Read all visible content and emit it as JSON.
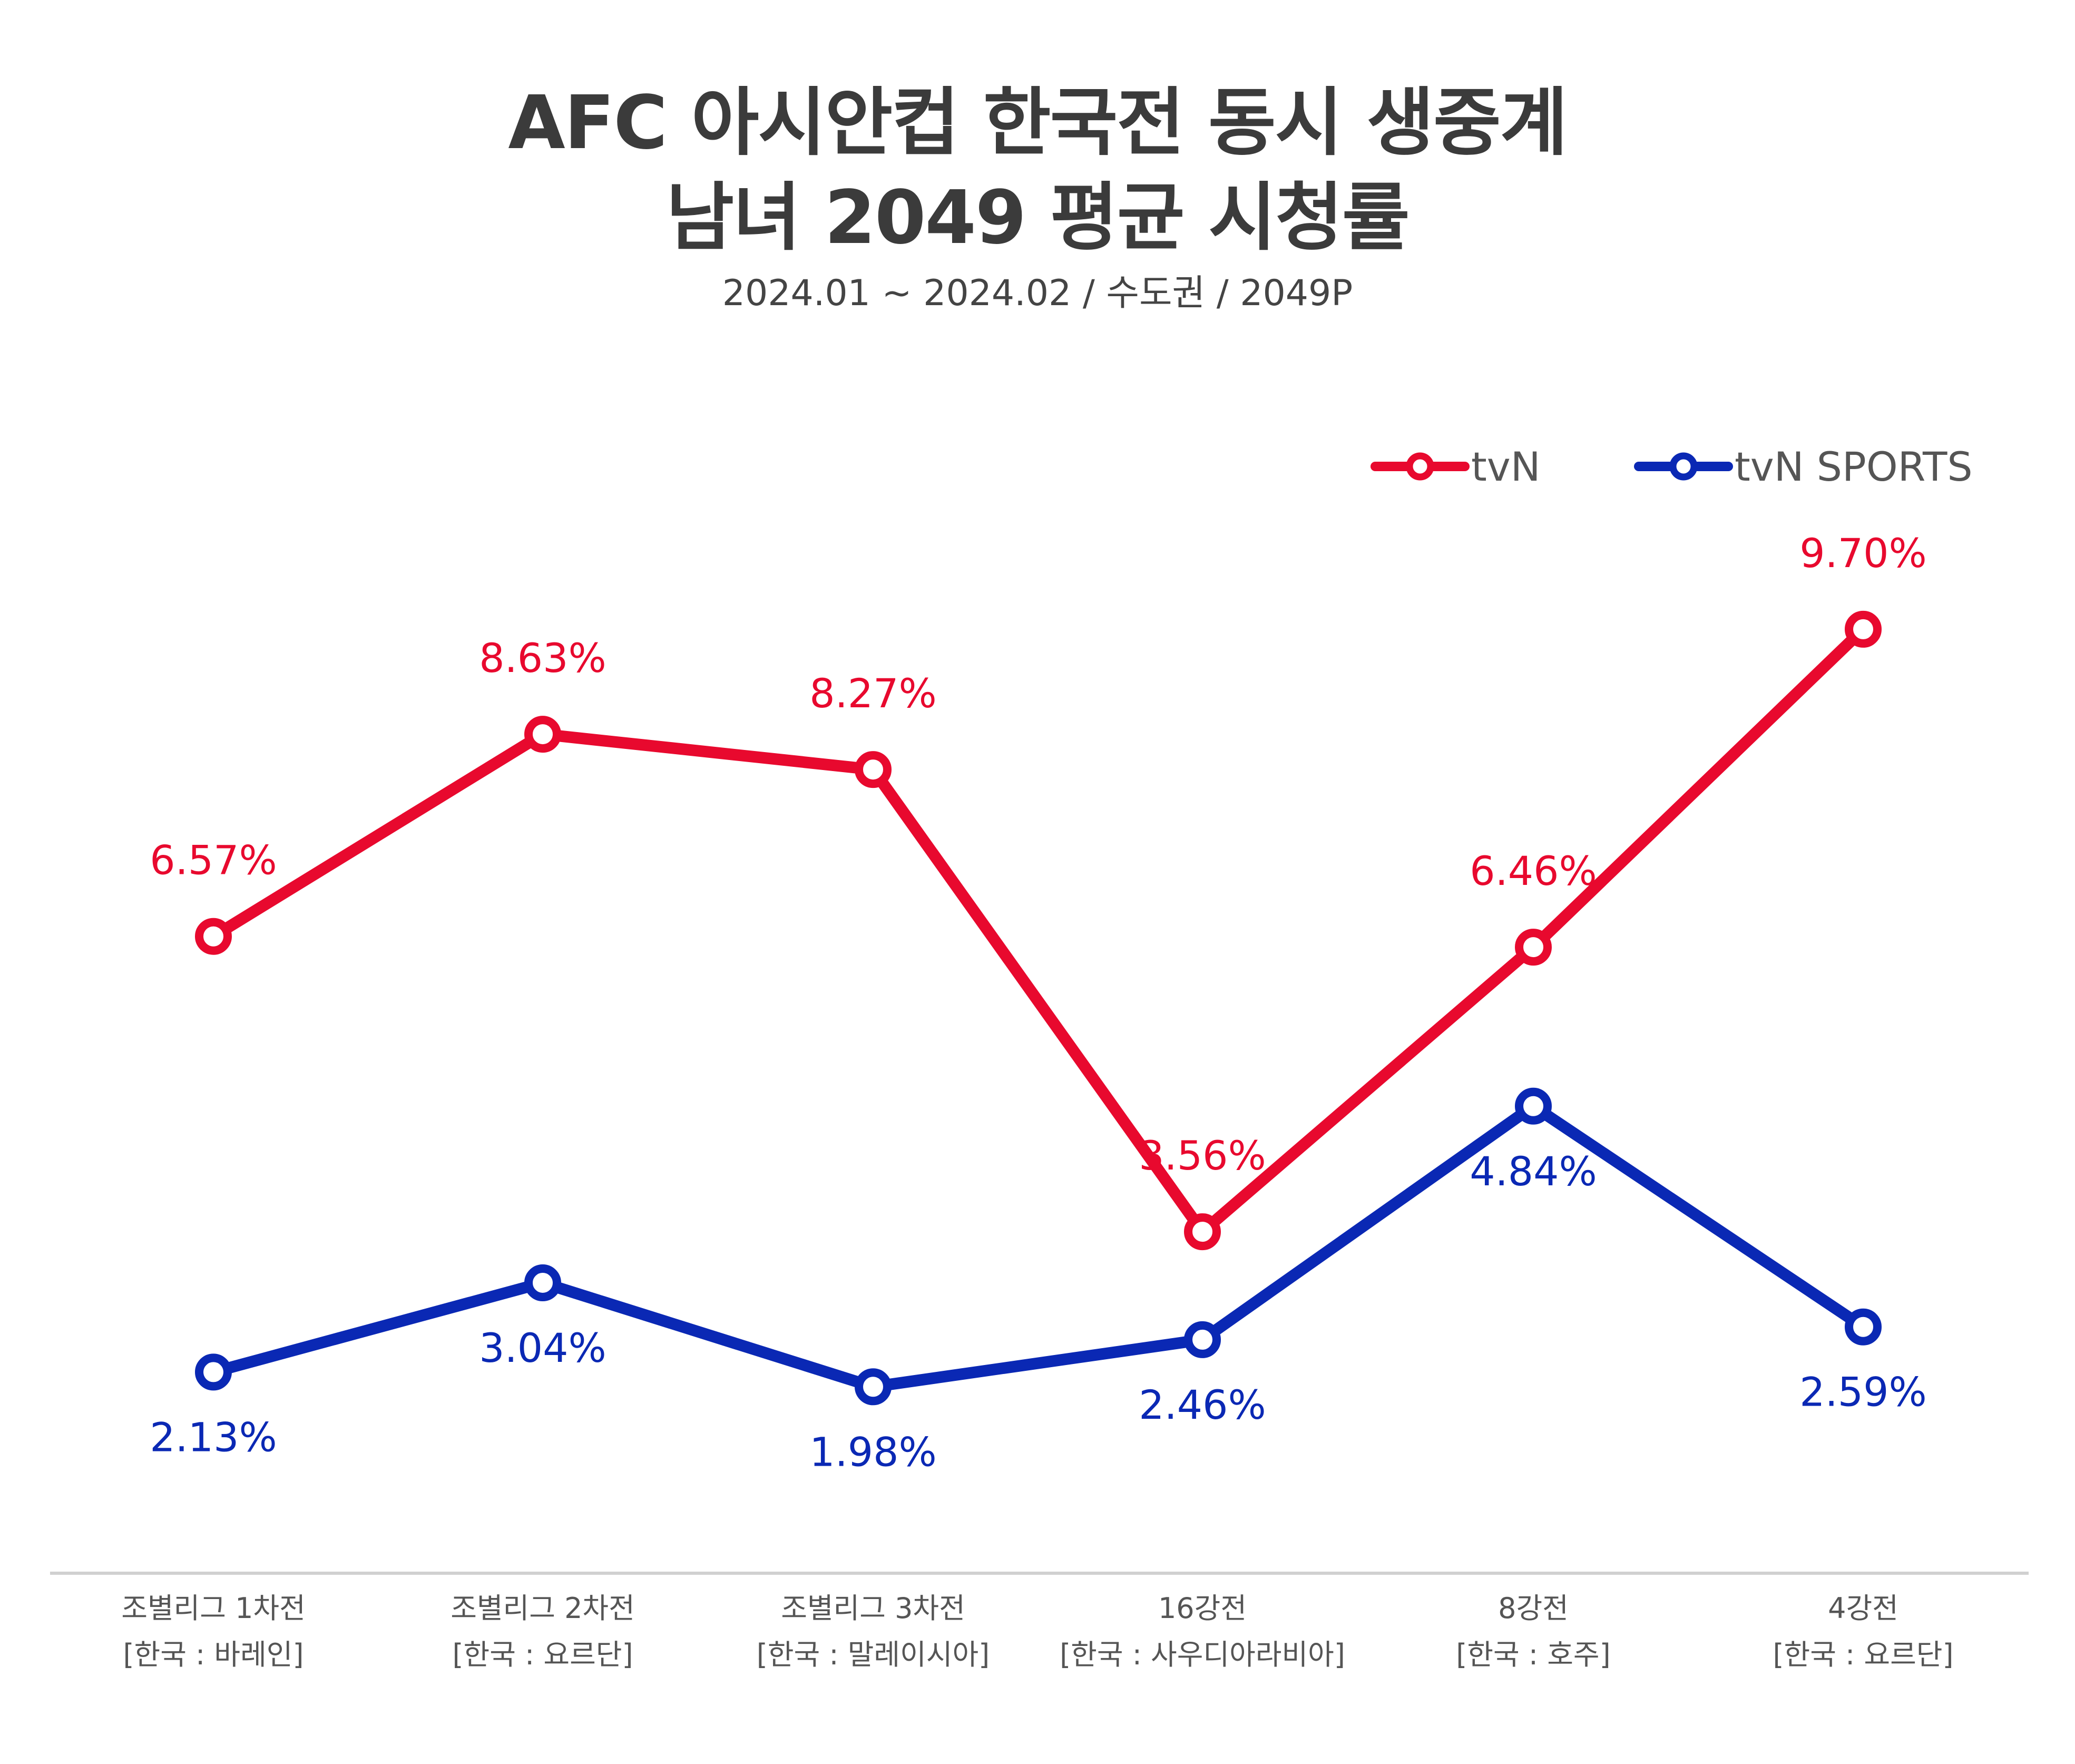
{
  "header": {
    "title_line1": "AFC 아시안컵 한국전 동시 생중계",
    "title_line2": "남녀 2049 평균 시청률",
    "subtitle": "2024.01 ~ 2024.02 / 수도권 / 2049P"
  },
  "colors": {
    "tvn": "#E8092E",
    "tvn_sports": "#0A28B4",
    "axis": "#d0d0d0"
  },
  "chart_data": {
    "type": "line",
    "title": "AFC 아시안컵 한국전 동시 생중계 남녀 2049 평균 시청률",
    "subtitle": "2024.01 ~ 2024.02 / 수도권 / 2049P",
    "categories": [
      {
        "line1": "조별리그 1차전",
        "line2": "[한국 : 바레인]"
      },
      {
        "line1": "조별리그 2차전",
        "line2": "[한국 : 요르단]"
      },
      {
        "line1": "조별리그 3차전",
        "line2": "[한국 : 말레이시아]"
      },
      {
        "line1": "16강전",
        "line2": "[한국 : 사우디아라비아]"
      },
      {
        "line1": "8강전",
        "line2": "[한국 : 호주]"
      },
      {
        "line1": "4강전",
        "line2": "[한국 : 요르단]"
      }
    ],
    "series": [
      {
        "name": "tvN",
        "color": "#E8092E",
        "values": [
          6.57,
          8.63,
          8.27,
          3.56,
          6.46,
          9.7
        ],
        "labels": [
          "6.57%",
          "8.63%",
          "8.27%",
          "3.56%",
          "6.46%",
          "9.70%"
        ],
        "label_position": "above"
      },
      {
        "name": "tvN SPORTS",
        "color": "#0A28B4",
        "values": [
          2.13,
          3.04,
          1.98,
          2.46,
          4.84,
          2.59
        ],
        "labels": [
          "2.13%",
          "3.04%",
          "1.98%",
          "2.46%",
          "4.84%",
          "2.59%"
        ],
        "label_position": "below"
      }
    ],
    "xlabel": "",
    "ylabel": "",
    "grid": false,
    "legend": "top-right"
  }
}
